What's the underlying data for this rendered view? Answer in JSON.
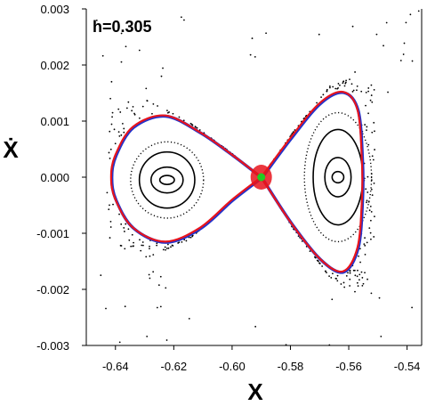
{
  "chart_data": {
    "type": "scatter",
    "title": "",
    "annotation": "h=0.305",
    "xlabel": "X",
    "ylabel": "Ẋ",
    "xlim": [
      -0.65,
      -0.535
    ],
    "ylim": [
      -0.003,
      0.003
    ],
    "x_ticks": [
      -0.64,
      -0.62,
      -0.6,
      -0.58,
      -0.56,
      -0.54
    ],
    "x_tick_labels": [
      "-0.64",
      "-0.62",
      "-0.60",
      "-0.58",
      "-0.56",
      "-0.54"
    ],
    "y_ticks": [
      0.003,
      0.002,
      0.001,
      0.0,
      -0.001,
      -0.002,
      -0.003
    ],
    "y_tick_labels": [
      "0.003",
      "0.002",
      "0.001",
      "0.000",
      "-0.001",
      "-0.002",
      "-0.003"
    ],
    "grid": false,
    "legend": "none",
    "colors": {
      "separatrix": "#e8141c",
      "separatrix_shadow": "#2233cc",
      "fixed_point": "#22cc22",
      "orbits": "#000000"
    },
    "separatrix_left_lobe": [
      [
        -0.59,
        0.0
      ],
      [
        -0.6,
        0.0004
      ],
      [
        -0.611,
        0.0008
      ],
      [
        -0.623,
        0.0011
      ],
      [
        -0.634,
        0.0009
      ],
      [
        -0.64,
        0.0004
      ],
      [
        -0.6415,
        0.0
      ],
      [
        -0.64,
        -0.0004
      ],
      [
        -0.634,
        -0.0009
      ],
      [
        -0.623,
        -0.00115
      ],
      [
        -0.611,
        -0.0009
      ],
      [
        -0.6,
        -0.0004
      ],
      [
        -0.59,
        0.0
      ]
    ],
    "separatrix_right_lobe": [
      [
        -0.59,
        0.0
      ],
      [
        -0.58,
        0.0007
      ],
      [
        -0.57,
        0.00132
      ],
      [
        -0.562,
        0.00152
      ],
      [
        -0.557,
        0.0012
      ],
      [
        -0.5555,
        0.0003
      ],
      [
        -0.5555,
        -0.0004
      ],
      [
        -0.557,
        -0.00125
      ],
      [
        -0.562,
        -0.00168
      ],
      [
        -0.57,
        -0.00145
      ],
      [
        -0.58,
        -0.0008
      ],
      [
        -0.59,
        0.0
      ]
    ],
    "fixed_point": [
      -0.59,
      0.0
    ],
    "left_center": [
      -0.6223,
      -5e-05
    ],
    "right_center": [
      -0.5637,
      0.0
    ],
    "left_orbits": [
      {
        "rx": 0.0025,
        "ry": 8e-05,
        "style": "solid"
      },
      {
        "rx": 0.0055,
        "ry": 0.00023,
        "style": "solid"
      },
      {
        "rx": 0.0095,
        "ry": 0.0005,
        "style": "solid"
      },
      {
        "rx": 0.0125,
        "ry": 0.00068,
        "style": "dotted"
      }
    ],
    "right_orbits": [
      {
        "rx": 0.002,
        "ry": 0.0001,
        "style": "solid"
      },
      {
        "rx": 0.0045,
        "ry": 0.00035,
        "style": "solid"
      },
      {
        "rx": 0.0085,
        "ry": 0.00085,
        "style": "solid"
      },
      {
        "rx": 0.0115,
        "ry": 0.00115,
        "style": "dotted"
      }
    ],
    "chaotic_band": {
      "lobe_scale": 1.22,
      "x_lo": -0.643,
      "x_hi": -0.551,
      "approx_points": 420
    },
    "outer_scatter_points": 120
  }
}
